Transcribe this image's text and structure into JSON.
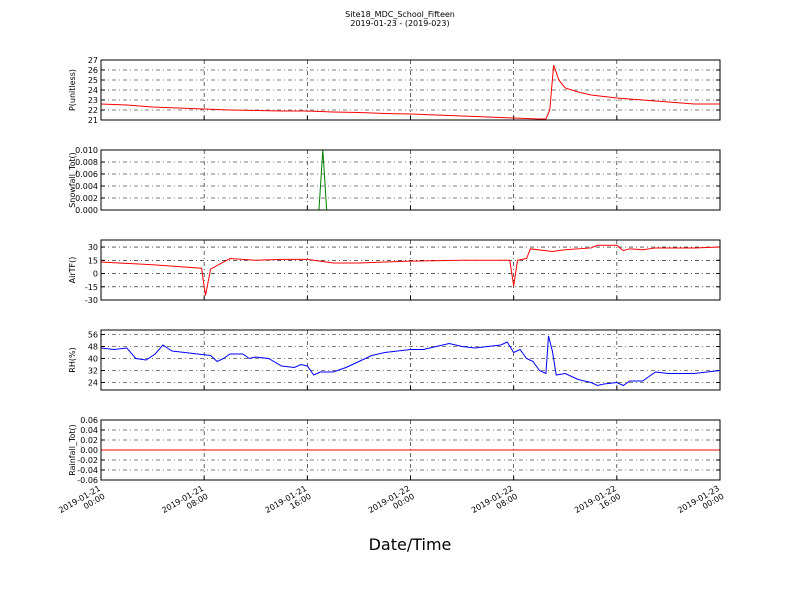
{
  "chart_data": [
    {
      "type": "line",
      "title": "Site18_MDC_School_Fifteen",
      "subtitle": "2019-01-23 - (2019-023)",
      "ylabel": "P(unitless)",
      "color": "#ff0000",
      "xlim": [
        "2019-01-21 00:00",
        "2019-01-23 00:00"
      ],
      "ylim": [
        21,
        27
      ],
      "yticks": [
        21,
        22,
        23,
        24,
        25,
        26,
        27
      ],
      "grid": true,
      "x": [
        "2019-01-21 00:00",
        "2019-01-21 02:00",
        "2019-01-21 04:00",
        "2019-01-21 06:00",
        "2019-01-21 08:00",
        "2019-01-21 10:00",
        "2019-01-21 12:00",
        "2019-01-21 14:00",
        "2019-01-21 16:00",
        "2019-01-21 18:00",
        "2019-01-21 20:00",
        "2019-01-21 22:00",
        "2019-01-22 00:00",
        "2019-01-22 02:00",
        "2019-01-22 04:00",
        "2019-01-22 06:00",
        "2019-01-22 08:00",
        "2019-01-22 10:00",
        "2019-01-22 10:30",
        "2019-01-22 10:48",
        "2019-01-22 11:06",
        "2019-01-22 11:30",
        "2019-01-22 12:00",
        "2019-01-22 13:00",
        "2019-01-22 14:00",
        "2019-01-22 16:00",
        "2019-01-22 18:00",
        "2019-01-22 20:00",
        "2019-01-22 22:00",
        "2019-01-23 00:00"
      ],
      "values": [
        22.6,
        22.5,
        22.3,
        22.2,
        22.1,
        22.0,
        21.95,
        21.9,
        21.9,
        21.8,
        21.75,
        21.65,
        21.6,
        21.5,
        21.4,
        21.3,
        21.2,
        21.1,
        21.1,
        22.0,
        26.5,
        25.0,
        24.2,
        23.8,
        23.5,
        23.2,
        23.0,
        22.8,
        22.6,
        22.6
      ]
    },
    {
      "type": "line",
      "ylabel": "Snowfall_Tot()",
      "color": "#008000",
      "xlim": [
        "2019-01-21 00:00",
        "2019-01-23 00:00"
      ],
      "ylim": [
        0,
        0.01
      ],
      "yticks": [
        {
          "value": 0,
          "label": "0.000"
        },
        {
          "value": 0.002,
          "label": "0.002"
        },
        {
          "value": 0.004,
          "label": "0.004"
        },
        {
          "value": 0.006,
          "label": "0.006"
        },
        {
          "value": 0.008,
          "label": "0.008"
        },
        {
          "value": 0.01,
          "label": "0.010"
        }
      ],
      "grid": true,
      "x": [
        "2019-01-21 00:00",
        "2019-01-21 16:54",
        "2019-01-21 17:12",
        "2019-01-21 17:30",
        "2019-01-23 00:00"
      ],
      "values": [
        0,
        0,
        0.01,
        0,
        0
      ]
    },
    {
      "type": "line",
      "ylabel": "AirTF()",
      "color": "#ff0000",
      "xlim": [
        "2019-01-21 00:00",
        "2019-01-23 00:00"
      ],
      "ylim": [
        -30,
        38
      ],
      "yticks": [
        -30,
        -15,
        0,
        15,
        30
      ],
      "grid": true,
      "x": [
        "2019-01-21 00:00",
        "2019-01-21 04:00",
        "2019-01-21 07:48",
        "2019-01-21 08:06",
        "2019-01-21 08:30",
        "2019-01-21 09:00",
        "2019-01-21 10:00",
        "2019-01-21 12:00",
        "2019-01-21 14:00",
        "2019-01-21 16:00",
        "2019-01-21 17:00",
        "2019-01-21 18:00",
        "2019-01-21 20:00",
        "2019-01-22 00:00",
        "2019-01-22 04:00",
        "2019-01-22 07:42",
        "2019-01-22 08:00",
        "2019-01-22 08:18",
        "2019-01-22 09:00",
        "2019-01-22 09:18",
        "2019-01-22 11:00",
        "2019-01-22 12:00",
        "2019-01-22 14:00",
        "2019-01-22 14:30",
        "2019-01-22 16:00",
        "2019-01-22 16:30",
        "2019-01-22 17:00",
        "2019-01-22 18:00",
        "2019-01-22 19:00",
        "2019-01-22 20:00",
        "2019-01-22 22:00",
        "2019-01-23 00:00"
      ],
      "values": [
        13,
        10,
        6,
        -25,
        5,
        9,
        17,
        15,
        16,
        16,
        14,
        12,
        12,
        14,
        15,
        15,
        -14,
        15,
        17,
        28,
        25,
        27,
        29,
        32,
        32,
        26,
        28,
        27,
        29,
        29,
        29,
        30
      ]
    },
    {
      "type": "line",
      "ylabel": "RH(%)",
      "color": "#0000ff",
      "xlim": [
        "2019-01-21 00:00",
        "2019-01-23 00:00"
      ],
      "ylim": [
        19,
        59
      ],
      "yticks": [
        24,
        32,
        40,
        48,
        56
      ],
      "grid": true,
      "x": [
        "2019-01-21 00:00",
        "2019-01-21 01:00",
        "2019-01-21 02:00",
        "2019-01-21 02:42",
        "2019-01-21 03:30",
        "2019-01-21 04:12",
        "2019-01-21 04:48",
        "2019-01-21 05:30",
        "2019-01-21 06:30",
        "2019-01-21 07:30",
        "2019-01-21 08:30",
        "2019-01-21 09:00",
        "2019-01-21 09:30",
        "2019-01-21 10:00",
        "2019-01-21 11:00",
        "2019-01-21 11:30",
        "2019-01-21 12:00",
        "2019-01-21 13:00",
        "2019-01-21 14:00",
        "2019-01-21 15:00",
        "2019-01-21 15:30",
        "2019-01-21 16:00",
        "2019-01-21 16:30",
        "2019-01-21 17:00",
        "2019-01-21 18:00",
        "2019-01-21 19:00",
        "2019-01-21 20:00",
        "2019-01-21 21:00",
        "2019-01-21 22:00",
        "2019-01-21 23:00",
        "2019-01-22 00:00",
        "2019-01-22 01:00",
        "2019-01-22 02:00",
        "2019-01-22 03:00",
        "2019-01-22 04:00",
        "2019-01-22 05:00",
        "2019-01-22 06:00",
        "2019-01-22 07:00",
        "2019-01-22 07:30",
        "2019-01-22 08:00",
        "2019-01-22 08:30",
        "2019-01-22 09:00",
        "2019-01-22 09:30",
        "2019-01-22 10:00",
        "2019-01-22 10:30",
        "2019-01-22 10:42",
        "2019-01-22 11:00",
        "2019-01-22 11:18",
        "2019-01-22 12:00",
        "2019-01-22 13:00",
        "2019-01-22 14:00",
        "2019-01-22 14:30",
        "2019-01-22 15:00",
        "2019-01-22 16:00",
        "2019-01-22 16:30",
        "2019-01-22 17:00",
        "2019-01-22 18:00",
        "2019-01-22 19:00",
        "2019-01-22 20:00",
        "2019-01-22 21:00",
        "2019-01-22 22:00",
        "2019-01-22 23:00",
        "2019-01-23 00:00"
      ],
      "values": [
        47,
        46,
        47,
        40,
        39,
        43,
        49,
        45,
        44,
        43,
        42,
        38,
        40,
        43,
        43,
        40,
        41,
        40,
        35,
        34,
        36,
        35,
        29,
        31,
        31,
        34,
        38,
        42,
        44,
        45,
        46,
        46,
        48,
        50,
        48,
        47,
        48,
        49,
        51,
        44,
        46,
        40,
        38,
        32,
        30,
        55,
        45,
        29,
        30,
        26,
        24,
        22,
        23,
        24,
        22,
        25,
        25,
        31,
        30,
        30,
        30,
        31,
        32
      ]
    },
    {
      "type": "line",
      "ylabel": "Rainfall_Tot()",
      "xlabel": "Date/Time",
      "color": "#ff0000",
      "xlim": [
        "2019-01-21 00:00",
        "2019-01-23 00:00"
      ],
      "ylim": [
        -0.06,
        0.06
      ],
      "yticks": [
        {
          "value": -0.06,
          "label": "-0.06"
        },
        {
          "value": -0.04,
          "label": "-0.04"
        },
        {
          "value": -0.02,
          "label": "-0.02"
        },
        {
          "value": 0,
          "label": "0.00"
        },
        {
          "value": 0.02,
          "label": "0.02"
        },
        {
          "value": 0.04,
          "label": "0.04"
        },
        {
          "value": 0.06,
          "label": "0.06"
        }
      ],
      "xticks": [
        {
          "value": "2019-01-21 00:00",
          "label": "2019-01-21\n00:00"
        },
        {
          "value": "2019-01-21 08:00",
          "label": "2019-01-21\n08:00"
        },
        {
          "value": "2019-01-21 16:00",
          "label": "2019-01-21\n16:00"
        },
        {
          "value": "2019-01-22 00:00",
          "label": "2019-01-22\n00:00"
        },
        {
          "value": "2019-01-22 08:00",
          "label": "2019-01-22\n08:00"
        },
        {
          "value": "2019-01-22 16:00",
          "label": "2019-01-22\n16:00"
        },
        {
          "value": "2019-01-23 00:00",
          "label": "2019-01-23\n00:00"
        }
      ],
      "grid": true,
      "x": [
        "2019-01-21 00:00",
        "2019-01-23 00:00"
      ],
      "values": [
        0,
        0
      ]
    }
  ]
}
